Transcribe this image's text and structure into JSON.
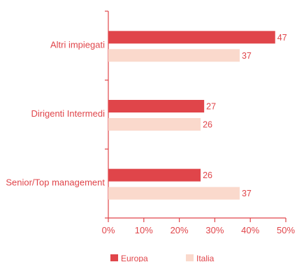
{
  "chart_data": {
    "type": "bar",
    "orientation": "horizontal",
    "categories": [
      "Altri impiegati",
      "Dirigenti Intermedi",
      "Senior/Top management"
    ],
    "series": [
      {
        "name": "Europa",
        "values": [
          47,
          27,
          26
        ],
        "color": "#e0454a"
      },
      {
        "name": "Italia",
        "values": [
          37,
          26,
          37
        ],
        "color": "#fad9cc"
      }
    ],
    "xlim": [
      0,
      50
    ],
    "ticks": [
      "0%",
      "10%",
      "20%",
      "30%",
      "40%",
      "50%"
    ],
    "tick_values": [
      0,
      10,
      20,
      30,
      40,
      50
    ],
    "axis_color": "#e0454a",
    "grid": false,
    "legend_position": "bottom"
  }
}
